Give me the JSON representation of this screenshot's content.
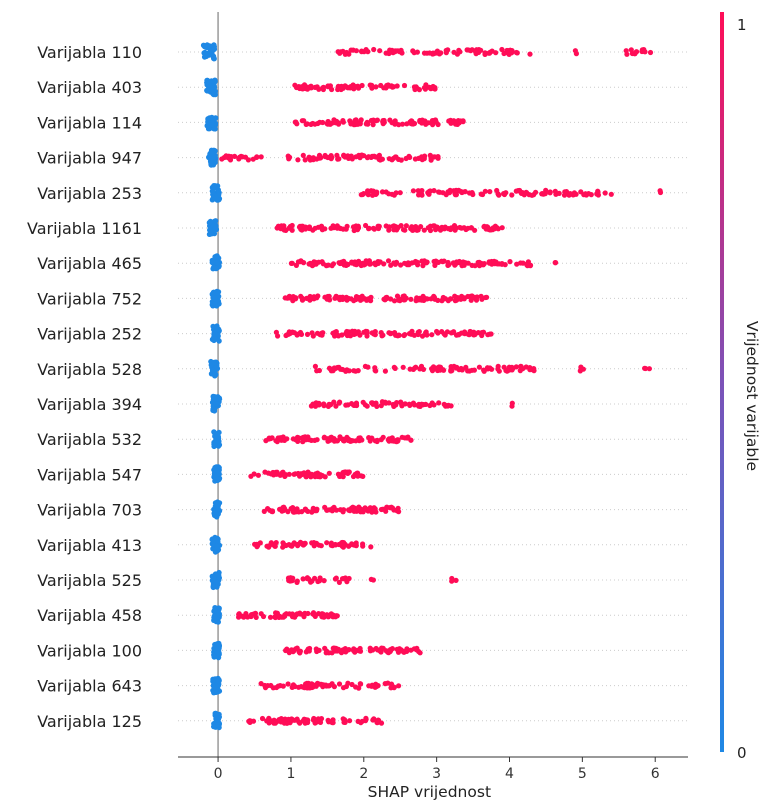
{
  "chart_data": {
    "type": "scatter",
    "subtype": "shap-beeswarm",
    "xlabel": "SHAP vrijednost",
    "xlim": [
      -0.55,
      6.45
    ],
    "xticks": [
      "0",
      "1",
      "2",
      "3",
      "4",
      "5",
      "6"
    ],
    "xtick_values": [
      0,
      1,
      2,
      3,
      4,
      5,
      6
    ],
    "colorbar": {
      "label": "Vrijednost varijable",
      "low_label": "0",
      "high_label": "1",
      "low_color": "#1e88e5",
      "high_color": "#ff0d57"
    },
    "low_cluster_color": "#1e88e5",
    "high_cluster_color": "#ff0d57",
    "features": [
      {
        "name": "Varijabla 110",
        "low": [
          -0.2,
          -0.05
        ],
        "high": [
          [
            1.6,
            4.3
          ],
          [
            4.9,
            4.95
          ],
          [
            5.6,
            5.95
          ]
        ],
        "high_density": 0.55
      },
      {
        "name": "Varijabla 403",
        "low": [
          -0.16,
          -0.03
        ],
        "high": [
          [
            1.05,
            3.0
          ]
        ],
        "high_density": 0.7
      },
      {
        "name": "Varijabla 114",
        "low": [
          -0.15,
          -0.03
        ],
        "high": [
          [
            1.05,
            3.4
          ]
        ],
        "high_density": 0.7
      },
      {
        "name": "Varijabla 947",
        "low": [
          -0.13,
          -0.03
        ],
        "high": [
          [
            0.05,
            0.6
          ],
          [
            0.9,
            3.05
          ]
        ],
        "high_density": 0.6
      },
      {
        "name": "Varijabla 253",
        "low": [
          -0.08,
          0.02
        ],
        "high": [
          [
            1.9,
            5.4
          ],
          [
            6.05,
            6.1
          ]
        ],
        "high_density": 0.55
      },
      {
        "name": "Varijabla 1161",
        "low": [
          -0.12,
          -0.02
        ],
        "high": [
          [
            0.8,
            3.9
          ]
        ],
        "high_density": 0.7
      },
      {
        "name": "Varijabla 465",
        "low": [
          -0.08,
          0.02
        ],
        "high": [
          [
            1.0,
            4.35
          ],
          [
            4.6,
            4.65
          ]
        ],
        "high_density": 0.7
      },
      {
        "name": "Varijabla 752",
        "low": [
          -0.08,
          0.02
        ],
        "high": [
          [
            0.85,
            3.7
          ]
        ],
        "high_density": 0.7
      },
      {
        "name": "Varijabla 252",
        "low": [
          -0.08,
          0.02
        ],
        "high": [
          [
            0.8,
            3.75
          ]
        ],
        "high_density": 0.65
      },
      {
        "name": "Varijabla 528",
        "low": [
          -0.1,
          0.0
        ],
        "high": [
          [
            1.3,
            4.35
          ],
          [
            4.95,
            5.05
          ],
          [
            5.85,
            5.95
          ]
        ],
        "high_density": 0.5
      },
      {
        "name": "Varijabla 394",
        "low": [
          -0.08,
          0.02
        ],
        "high": [
          [
            1.25,
            3.2
          ],
          [
            4.0,
            4.05
          ]
        ],
        "high_density": 0.6
      },
      {
        "name": "Varijabla 532",
        "low": [
          -0.06,
          0.02
        ],
        "high": [
          [
            0.65,
            2.65
          ]
        ],
        "high_density": 0.75
      },
      {
        "name": "Varijabla 547",
        "low": [
          -0.06,
          0.02
        ],
        "high": [
          [
            0.45,
            2.0
          ]
        ],
        "high_density": 0.75
      },
      {
        "name": "Varijabla 703",
        "low": [
          -0.06,
          0.02
        ],
        "high": [
          [
            0.6,
            2.5
          ]
        ],
        "high_density": 0.75
      },
      {
        "name": "Varijabla 413",
        "low": [
          -0.08,
          0.02
        ],
        "high": [
          [
            0.5,
            2.1
          ]
        ],
        "high_density": 0.7
      },
      {
        "name": "Varijabla 525",
        "low": [
          -0.08,
          0.02
        ],
        "high": [
          [
            0.9,
            1.8
          ],
          [
            2.1,
            2.15
          ],
          [
            3.2,
            3.3
          ]
        ],
        "high_density": 0.55
      },
      {
        "name": "Varijabla 458",
        "low": [
          -0.06,
          0.02
        ],
        "high": [
          [
            0.28,
            1.65
          ]
        ],
        "high_density": 0.75
      },
      {
        "name": "Varijabla 100",
        "low": [
          -0.06,
          0.02
        ],
        "high": [
          [
            0.9,
            2.8
          ]
        ],
        "high_density": 0.75
      },
      {
        "name": "Varijabla 643",
        "low": [
          -0.08,
          0.02
        ],
        "high": [
          [
            0.55,
            2.5
          ]
        ],
        "high_density": 0.6
      },
      {
        "name": "Varijabla 125",
        "low": [
          -0.06,
          0.02
        ],
        "high": [
          [
            0.35,
            2.25
          ]
        ],
        "high_density": 0.65
      }
    ]
  }
}
